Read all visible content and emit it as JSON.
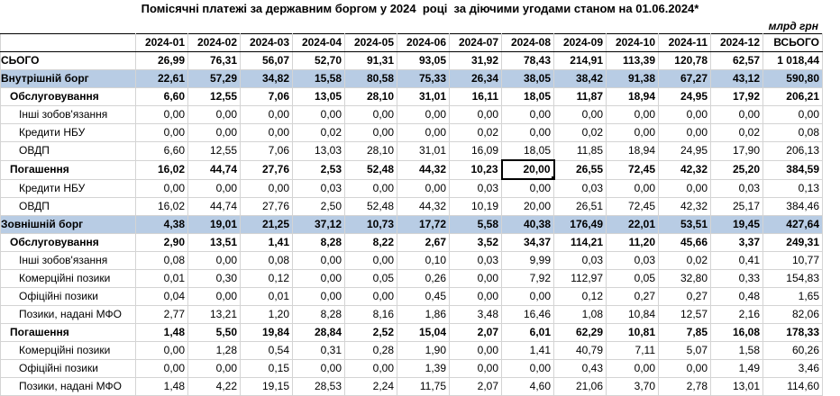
{
  "title": "Помісячні платежі за державним боргом у 2024  році  за діючими угодами станом на 01.06.2024*",
  "unit": "млрд грн",
  "columns": [
    "2024-01",
    "2024-02",
    "2024-03",
    "2024-04",
    "2024-05",
    "2024-06",
    "2024-07",
    "2024-08",
    "2024-09",
    "2024-10",
    "2024-11",
    "2024-12",
    "ВСЬОГО"
  ],
  "rows": [
    {
      "label": "СЬОГО",
      "indent": 0,
      "style": "total",
      "values": [
        "26,99",
        "76,31",
        "56,07",
        "52,70",
        "91,31",
        "93,05",
        "31,92",
        "78,43",
        "214,91",
        "113,39",
        "120,78",
        "62,57",
        "1 018,44"
      ]
    },
    {
      "label": "Внутрішній борг",
      "indent": 0,
      "style": "level0",
      "values": [
        "22,61",
        "57,29",
        "34,82",
        "15,58",
        "80,58",
        "75,33",
        "26,34",
        "38,05",
        "38,42",
        "91,38",
        "67,27",
        "43,12",
        "590,80"
      ]
    },
    {
      "label": "Обслуговування",
      "indent": 1,
      "style": "bold1",
      "values": [
        "6,60",
        "12,55",
        "7,06",
        "13,05",
        "28,10",
        "31,01",
        "16,11",
        "18,05",
        "11,87",
        "18,94",
        "24,95",
        "17,92",
        "206,21"
      ]
    },
    {
      "label": "Інші зобов'язання",
      "indent": 2,
      "style": "",
      "values": [
        "0,00",
        "0,00",
        "0,00",
        "0,00",
        "0,00",
        "0,00",
        "0,00",
        "0,00",
        "0,00",
        "0,00",
        "0,00",
        "0,00",
        "0,00"
      ]
    },
    {
      "label": "Кредити НБУ",
      "indent": 2,
      "style": "",
      "values": [
        "0,00",
        "0,00",
        "0,00",
        "0,02",
        "0,00",
        "0,00",
        "0,02",
        "0,00",
        "0,02",
        "0,00",
        "0,00",
        "0,02",
        "0,08"
      ]
    },
    {
      "label": "ОВДП",
      "indent": 2,
      "style": "",
      "values": [
        "6,60",
        "12,55",
        "7,06",
        "13,03",
        "28,10",
        "31,01",
        "16,09",
        "18,05",
        "11,85",
        "18,94",
        "24,95",
        "17,90",
        "206,13"
      ]
    },
    {
      "label": "Погашення",
      "indent": 1,
      "style": "bold1",
      "values": [
        "16,02",
        "44,74",
        "27,76",
        "2,53",
        "52,48",
        "44,32",
        "10,23",
        "20,00",
        "26,55",
        "72,45",
        "42,32",
        "25,20",
        "384,59"
      ]
    },
    {
      "label": "Кредити НБУ",
      "indent": 2,
      "style": "",
      "values": [
        "0,00",
        "0,00",
        "0,00",
        "0,03",
        "0,00",
        "0,00",
        "0,03",
        "0,00",
        "0,03",
        "0,00",
        "0,00",
        "0,03",
        "0,13"
      ]
    },
    {
      "label": "ОВДП",
      "indent": 2,
      "style": "",
      "values": [
        "16,02",
        "44,74",
        "27,76",
        "2,50",
        "52,48",
        "44,32",
        "10,19",
        "20,00",
        "26,51",
        "72,45",
        "42,32",
        "25,17",
        "384,46"
      ]
    },
    {
      "label": "Зовнішній борг",
      "indent": 0,
      "style": "level0",
      "values": [
        "4,38",
        "19,01",
        "21,25",
        "37,12",
        "10,73",
        "17,72",
        "5,58",
        "40,38",
        "176,49",
        "22,01",
        "53,51",
        "19,45",
        "427,64"
      ]
    },
    {
      "label": "Обслуговування",
      "indent": 1,
      "style": "bold1",
      "values": [
        "2,90",
        "13,51",
        "1,41",
        "8,28",
        "8,22",
        "2,67",
        "3,52",
        "34,37",
        "114,21",
        "11,20",
        "45,66",
        "3,37",
        "249,31"
      ]
    },
    {
      "label": "Інші зобов'язання",
      "indent": 2,
      "style": "",
      "values": [
        "0,08",
        "0,00",
        "0,08",
        "0,00",
        "0,00",
        "0,10",
        "0,03",
        "9,99",
        "0,03",
        "0,03",
        "0,02",
        "0,41",
        "10,77"
      ]
    },
    {
      "label": "Комерційні позики",
      "indent": 2,
      "style": "",
      "values": [
        "0,01",
        "0,30",
        "0,12",
        "0,00",
        "0,05",
        "0,26",
        "0,00",
        "7,92",
        "112,97",
        "0,05",
        "32,80",
        "0,33",
        "154,83"
      ]
    },
    {
      "label": "Офіційні позики",
      "indent": 2,
      "style": "",
      "values": [
        "0,04",
        "0,00",
        "0,01",
        "0,00",
        "0,00",
        "0,45",
        "0,00",
        "0,00",
        "0,12",
        "0,27",
        "0,27",
        "0,48",
        "1,65"
      ]
    },
    {
      "label": "Позики, надані МФО",
      "indent": 2,
      "style": "",
      "values": [
        "2,77",
        "13,21",
        "1,20",
        "8,28",
        "8,16",
        "1,86",
        "3,48",
        "16,46",
        "1,08",
        "10,84",
        "12,57",
        "2,16",
        "82,06"
      ]
    },
    {
      "label": "Погашення",
      "indent": 1,
      "style": "bold1",
      "values": [
        "1,48",
        "5,50",
        "19,84",
        "28,84",
        "2,52",
        "15,04",
        "2,07",
        "6,01",
        "62,29",
        "10,81",
        "7,85",
        "16,08",
        "178,33"
      ]
    },
    {
      "label": "Комерційні позики",
      "indent": 2,
      "style": "",
      "values": [
        "0,00",
        "1,28",
        "0,54",
        "0,31",
        "0,28",
        "1,90",
        "0,00",
        "1,41",
        "40,79",
        "7,11",
        "5,07",
        "1,58",
        "60,26"
      ]
    },
    {
      "label": "Офіційні позики",
      "indent": 2,
      "style": "",
      "values": [
        "0,00",
        "0,00",
        "0,15",
        "0,00",
        "0,00",
        "1,39",
        "0,00",
        "0,00",
        "0,43",
        "0,00",
        "0,00",
        "1,49",
        "3,46"
      ]
    },
    {
      "label": "Позики, надані МФО",
      "indent": 2,
      "style": "",
      "values": [
        "1,48",
        "4,22",
        "19,15",
        "28,53",
        "2,24",
        "11,75",
        "2,07",
        "4,60",
        "21,06",
        "3,70",
        "2,78",
        "13,01",
        "114,60"
      ]
    }
  ],
  "selected_cell": {
    "row": 6,
    "col": 7
  }
}
